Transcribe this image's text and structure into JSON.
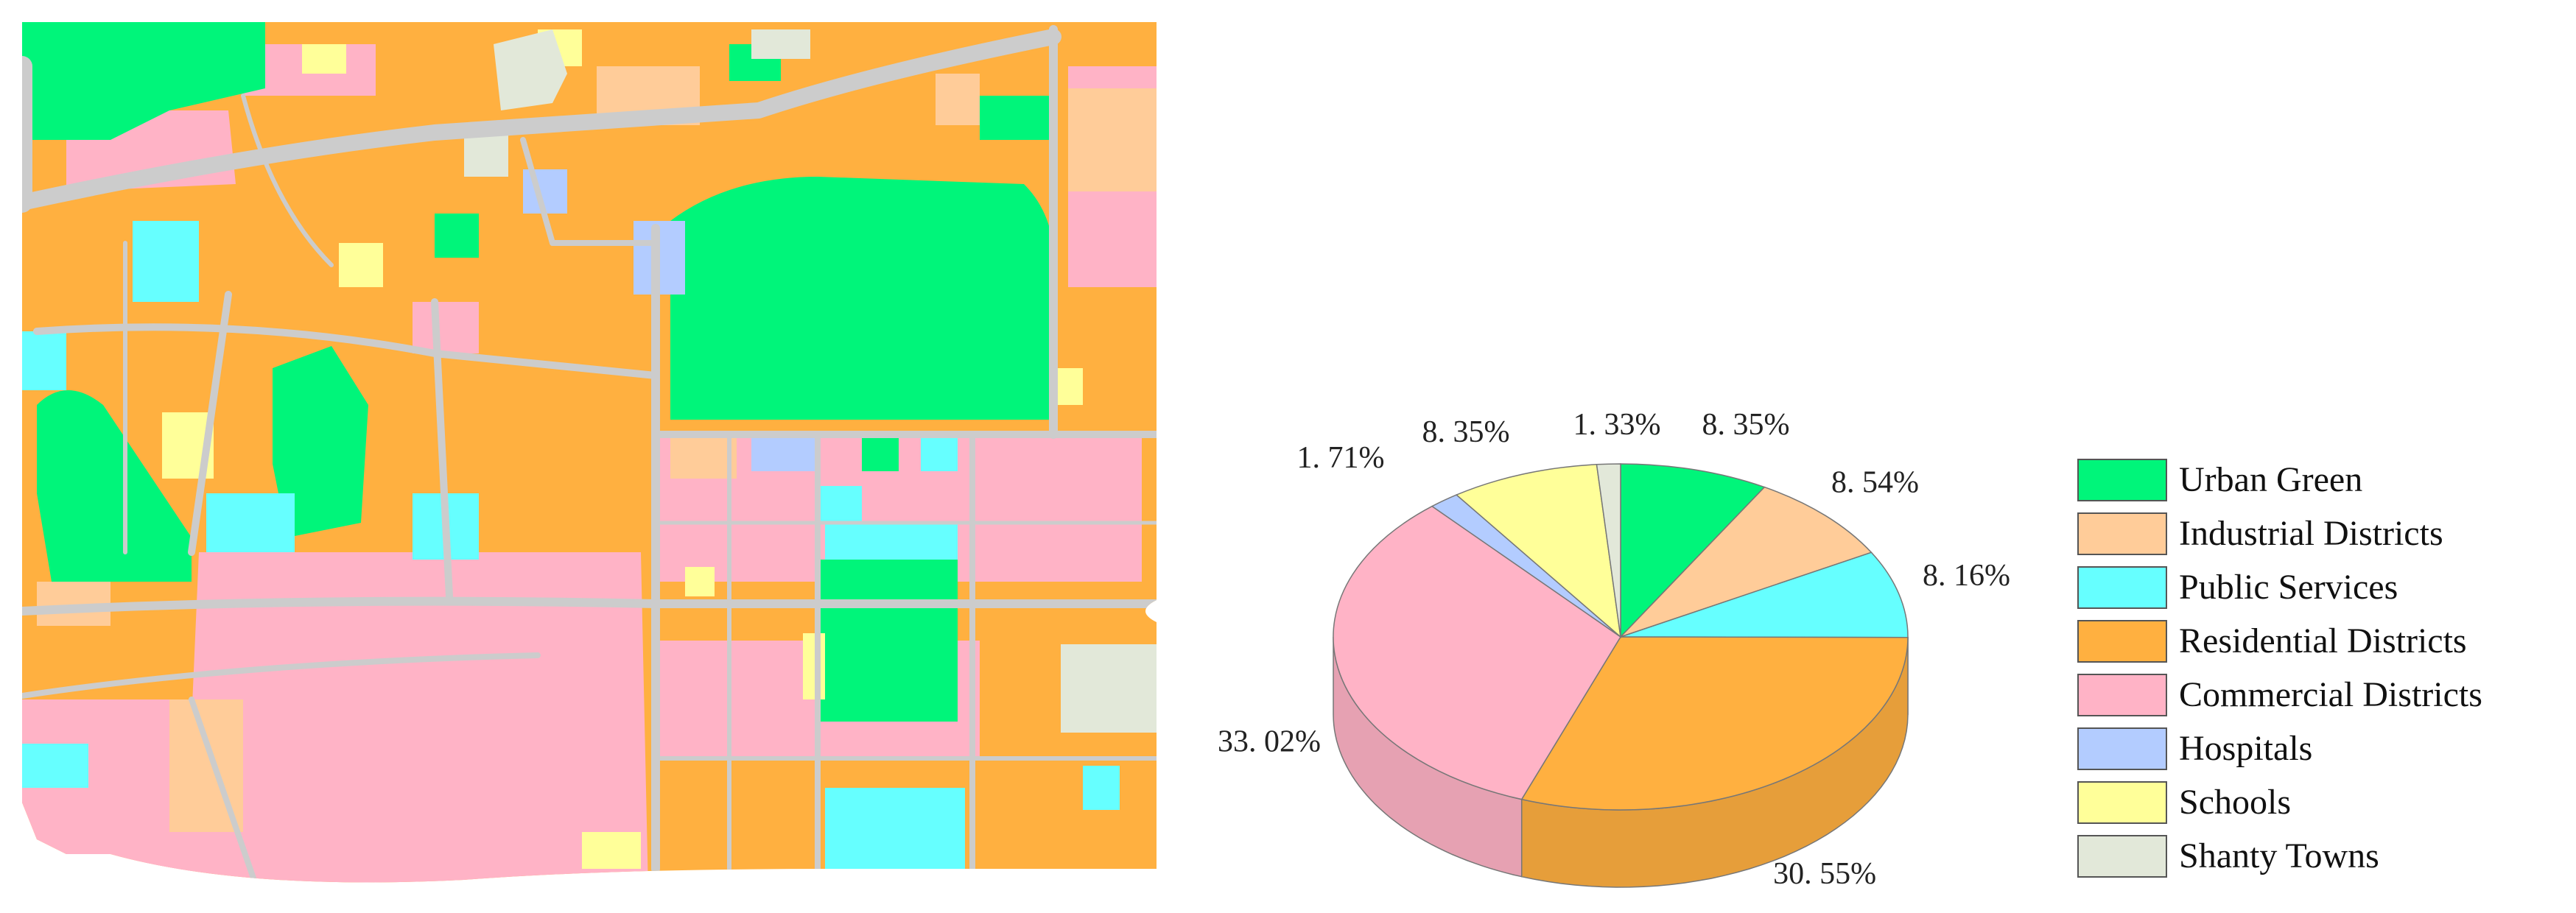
{
  "legend": {
    "items": [
      {
        "key": "urban_green",
        "label": "Urban Green",
        "color": "#00F57A"
      },
      {
        "key": "industrial",
        "label": "Industrial Districts",
        "color": "#FFCC99"
      },
      {
        "key": "public_services",
        "label": "Public Services",
        "color": "#66FFFF"
      },
      {
        "key": "residential",
        "label": "Residential Districts",
        "color": "#FFB040"
      },
      {
        "key": "commercial",
        "label": "Commercial Districts",
        "color": "#FFB3C6"
      },
      {
        "key": "hospitals",
        "label": "Hospitals",
        "color": "#B3CCFF"
      },
      {
        "key": "schools",
        "label": "Schools",
        "color": "#FFFF99"
      },
      {
        "key": "shanty",
        "label": "Shanty Towns",
        "color": "#E2E8D9"
      }
    ]
  },
  "map": {
    "road_color": "#CCCCCC",
    "background_color": "#FFB040"
  },
  "chart_data": {
    "type": "pie",
    "title": "",
    "slices": [
      {
        "category": "Urban Green",
        "value": 8.35,
        "label": "8. 35%",
        "color": "#00F57A"
      },
      {
        "category": "Industrial Districts",
        "value": 8.54,
        "label": "8. 54%",
        "color": "#FFCC99"
      },
      {
        "category": "Public Services",
        "value": 8.16,
        "label": "8. 16%",
        "color": "#66FFFF"
      },
      {
        "category": "Residential Districts",
        "value": 30.55,
        "label": "30. 55%",
        "color": "#FFB040"
      },
      {
        "category": "Commercial Districts",
        "value": 33.02,
        "label": "33. 02%",
        "color": "#FFB3C6"
      },
      {
        "category": "Hospitals",
        "value": 1.71,
        "label": "1. 71%",
        "color": "#B3CCFF"
      },
      {
        "category": "Schools",
        "value": 8.35,
        "label": "8. 35%",
        "color": "#FFFF99"
      },
      {
        "category": "Shanty Towns",
        "value": 1.33,
        "label": "1. 33%",
        "color": "#E2E8D9"
      }
    ],
    "start_angle_deg": -90,
    "direction": "clockwise",
    "style": "3d-extruded"
  }
}
